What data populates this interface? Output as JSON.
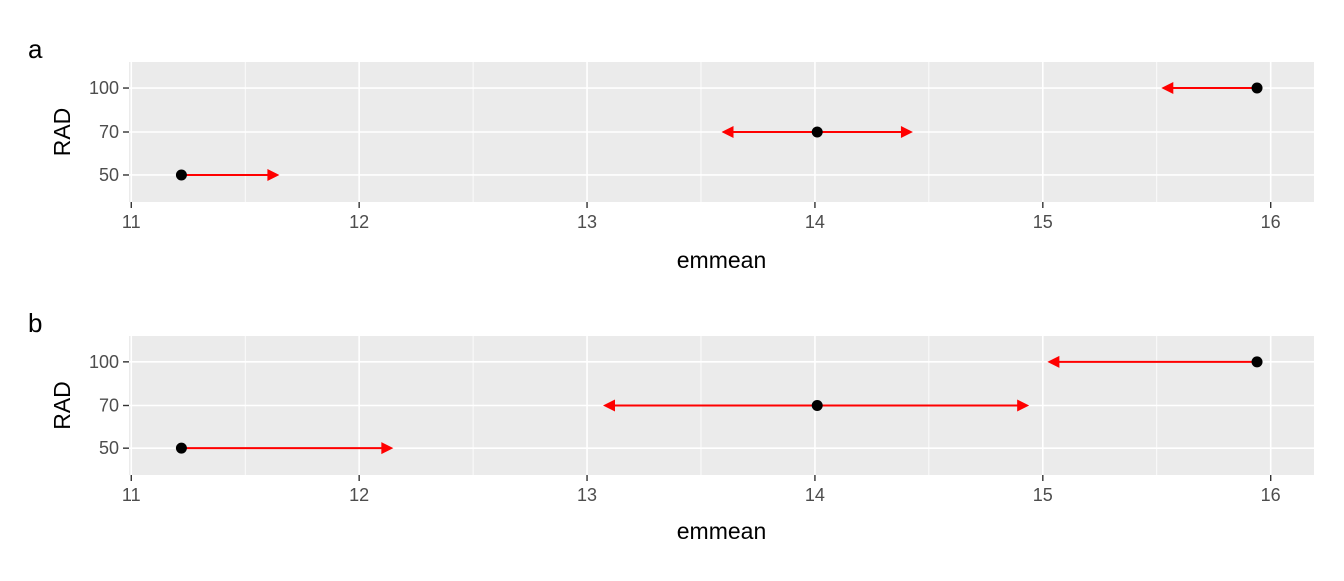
{
  "chart_data": [
    {
      "type": "scatter",
      "tag": "a",
      "xlabel": "emmean",
      "ylabel": "RAD",
      "xlim": [
        10.99,
        16.19
      ],
      "x_ticks": [
        "11",
        "12",
        "13",
        "14",
        "15",
        "16"
      ],
      "categories": [
        "50",
        "70",
        "100"
      ],
      "grid": true,
      "points": [
        {
          "y": "50",
          "emmean": 11.22,
          "arrow_from": 11.22,
          "arrow_to": 11.65,
          "left_head": false,
          "right_head": true
        },
        {
          "y": "70",
          "emmean": 14.01,
          "arrow_from": 13.59,
          "arrow_to": 14.43,
          "left_head": true,
          "right_head": true
        },
        {
          "y": "100",
          "emmean": 15.94,
          "arrow_from": 15.52,
          "arrow_to": 15.94,
          "left_head": true,
          "right_head": false
        }
      ]
    },
    {
      "type": "scatter",
      "tag": "b",
      "xlabel": "emmean",
      "ylabel": "RAD",
      "xlim": [
        10.99,
        16.19
      ],
      "x_ticks": [
        "11",
        "12",
        "13",
        "14",
        "15",
        "16"
      ],
      "categories": [
        "50",
        "70",
        "100"
      ],
      "grid": true,
      "points": [
        {
          "y": "50",
          "emmean": 11.22,
          "arrow_from": 11.22,
          "arrow_to": 12.15,
          "left_head": false,
          "right_head": true
        },
        {
          "y": "70",
          "emmean": 14.01,
          "arrow_from": 13.07,
          "arrow_to": 14.94,
          "left_head": true,
          "right_head": true
        },
        {
          "y": "100",
          "emmean": 15.94,
          "arrow_from": 15.02,
          "arrow_to": 15.94,
          "left_head": true,
          "right_head": false
        }
      ]
    }
  ],
  "colors": {
    "panel_background": "#ebebeb",
    "gridline": "#ffffff",
    "point": "#000000",
    "arrow": "#ff0000",
    "tick_text": "#4d4d4d",
    "tick_mark": "#333333"
  }
}
